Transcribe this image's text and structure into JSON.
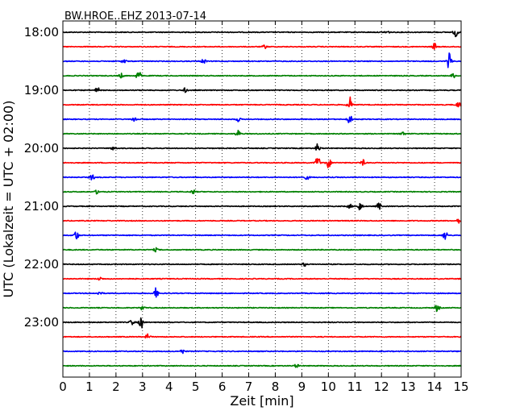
{
  "chart_data": {
    "type": "line",
    "title": "BW.HROE..EHZ 2013-07-14",
    "xlabel": "Zeit  [min]",
    "ylabel": "UTC (Lokalzeit = UTC + 02:00)",
    "xlim": [
      0,
      15
    ],
    "x_ticks": [
      0,
      1,
      2,
      3,
      4,
      5,
      6,
      7,
      8,
      9,
      10,
      11,
      12,
      13,
      14,
      15
    ],
    "x_grid": "dotted",
    "y_tick_labels": [
      "18:00",
      "19:00",
      "20:00",
      "21:00",
      "22:00",
      "23:00"
    ],
    "trace_interval_min": 15,
    "series": [
      {
        "start": "18:00",
        "color": "#000000",
        "events": [
          {
            "x": 14.8,
            "amp": 0.35
          },
          {
            "x": 12.2,
            "amp": 0.15
          }
        ]
      },
      {
        "start": "18:15",
        "color": "#ff0000",
        "events": [
          {
            "x": 14.0,
            "amp": 0.25
          },
          {
            "x": 7.6,
            "amp": 0.12
          }
        ]
      },
      {
        "start": "18:30",
        "color": "#0000ff",
        "events": [
          {
            "x": 14.55,
            "amp": 0.55
          },
          {
            "x": 5.3,
            "amp": 0.2
          },
          {
            "x": 2.3,
            "amp": 0.15
          }
        ]
      },
      {
        "start": "18:45",
        "color": "#008000",
        "events": [
          {
            "x": 2.85,
            "amp": 0.4
          },
          {
            "x": 2.2,
            "amp": 0.15
          },
          {
            "x": 14.7,
            "amp": 0.15
          }
        ]
      },
      {
        "start": "19:00",
        "color": "#000000",
        "events": [
          {
            "x": 1.3,
            "amp": 0.2
          },
          {
            "x": 4.6,
            "amp": 0.15
          }
        ]
      },
      {
        "start": "19:15",
        "color": "#ff0000",
        "events": [
          {
            "x": 10.8,
            "amp": 0.55
          },
          {
            "x": 14.9,
            "amp": 0.2
          }
        ]
      },
      {
        "start": "19:30",
        "color": "#0000ff",
        "events": [
          {
            "x": 10.8,
            "amp": 0.35
          },
          {
            "x": 2.7,
            "amp": 0.2
          },
          {
            "x": 6.6,
            "amp": 0.15
          }
        ]
      },
      {
        "start": "19:45",
        "color": "#008000",
        "events": [
          {
            "x": 6.6,
            "amp": 0.25
          },
          {
            "x": 12.8,
            "amp": 0.15
          }
        ]
      },
      {
        "start": "20:00",
        "color": "#000000",
        "events": [
          {
            "x": 9.6,
            "amp": 0.3
          },
          {
            "x": 1.9,
            "amp": 0.15
          }
        ]
      },
      {
        "start": "20:15",
        "color": "#ff0000",
        "events": [
          {
            "x": 9.6,
            "amp": 0.5
          },
          {
            "x": 10.0,
            "amp": 0.4
          },
          {
            "x": 11.3,
            "amp": 0.2
          }
        ]
      },
      {
        "start": "20:30",
        "color": "#0000ff",
        "events": [
          {
            "x": 1.1,
            "amp": 0.2
          },
          {
            "x": 9.2,
            "amp": 0.15
          }
        ]
      },
      {
        "start": "20:45",
        "color": "#008000",
        "events": [
          {
            "x": 1.3,
            "amp": 0.15
          },
          {
            "x": 4.9,
            "amp": 0.15
          }
        ]
      },
      {
        "start": "21:00",
        "color": "#000000",
        "events": [
          {
            "x": 11.2,
            "amp": 0.3
          },
          {
            "x": 11.9,
            "amp": 0.25
          },
          {
            "x": 10.8,
            "amp": 0.15
          }
        ]
      },
      {
        "start": "21:15",
        "color": "#ff0000",
        "events": [
          {
            "x": 14.9,
            "amp": 0.15
          }
        ]
      },
      {
        "start": "21:30",
        "color": "#0000ff",
        "events": [
          {
            "x": 0.5,
            "amp": 0.35
          },
          {
            "x": 14.4,
            "amp": 0.35
          }
        ]
      },
      {
        "start": "21:45",
        "color": "#008000",
        "events": [
          {
            "x": 3.5,
            "amp": 0.12
          }
        ]
      },
      {
        "start": "22:00",
        "color": "#000000",
        "events": [
          {
            "x": 9.1,
            "amp": 0.12
          }
        ]
      },
      {
        "start": "22:15",
        "color": "#ff0000",
        "events": [
          {
            "x": 1.4,
            "amp": 0.12
          }
        ]
      },
      {
        "start": "22:30",
        "color": "#0000ff",
        "events": [
          {
            "x": 3.5,
            "amp": 0.35
          },
          {
            "x": 1.4,
            "amp": 0.15
          }
        ]
      },
      {
        "start": "22:45",
        "color": "#008000",
        "events": [
          {
            "x": 14.1,
            "amp": 0.25
          },
          {
            "x": 3.0,
            "amp": 0.15
          }
        ]
      },
      {
        "start": "23:00",
        "color": "#000000",
        "events": [
          {
            "x": 2.95,
            "amp": 0.4
          },
          {
            "x": 2.6,
            "amp": 0.2
          }
        ]
      },
      {
        "start": "23:15",
        "color": "#ff0000",
        "events": [
          {
            "x": 3.2,
            "amp": 0.2
          }
        ]
      },
      {
        "start": "23:30",
        "color": "#0000ff",
        "events": [
          {
            "x": 4.5,
            "amp": 0.15
          }
        ]
      },
      {
        "start": "23:45",
        "color": "#008000",
        "events": [
          {
            "x": 8.8,
            "amp": 0.12
          }
        ]
      }
    ]
  }
}
